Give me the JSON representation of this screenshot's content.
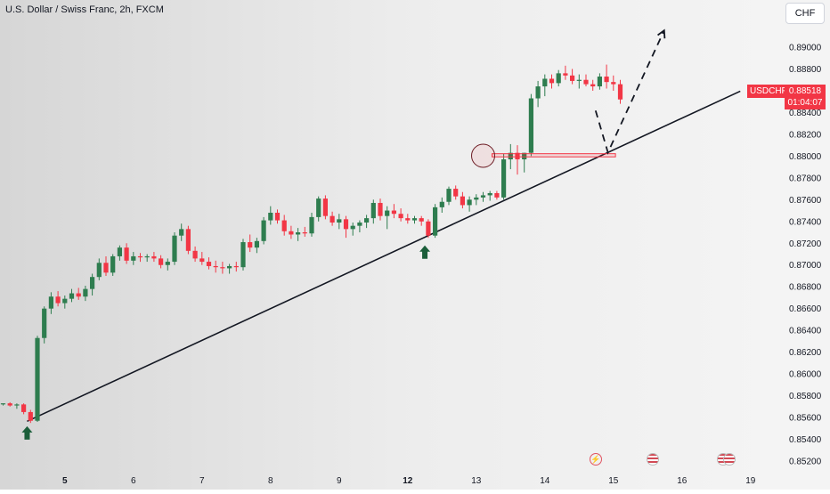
{
  "header": {
    "title": "U.S. Dollar / Swiss Franc, 2h, FXCM"
  },
  "currency_button": "CHF",
  "last_price": {
    "symbol": "USDCHF",
    "price": "0.88518",
    "countdown": "01:04:07"
  },
  "colors": {
    "up": "#2e7d4f",
    "down": "#f23645",
    "trendline": "#131722",
    "accent": "#f23645"
  },
  "event_icons": [
    "lightning-icon",
    "us-flag-icon",
    "us-flag-icon"
  ],
  "chart_data": {
    "type": "candlestick",
    "ylim": [
      0.8512,
      0.8915
    ],
    "yticks": [
      "0.89000",
      "0.88800",
      "0.88600",
      "0.88400",
      "0.88200",
      "0.88000",
      "0.87800",
      "0.87600",
      "0.87400",
      "0.87200",
      "0.87000",
      "0.86800",
      "0.86600",
      "0.86400",
      "0.86200",
      "0.86000",
      "0.85800",
      "0.85600",
      "0.85400",
      "0.85200"
    ],
    "xticks": [
      {
        "label": "5",
        "bold": true,
        "i": 9
      },
      {
        "label": "6",
        "bold": false,
        "i": 19
      },
      {
        "label": "7",
        "bold": false,
        "i": 29
      },
      {
        "label": "8",
        "bold": false,
        "i": 39
      },
      {
        "label": "9",
        "bold": false,
        "i": 49
      },
      {
        "label": "12",
        "bold": true,
        "i": 59
      },
      {
        "label": "13",
        "bold": false,
        "i": 69
      },
      {
        "label": "14",
        "bold": false,
        "i": 79
      },
      {
        "label": "15",
        "bold": false,
        "i": 89
      },
      {
        "label": "16",
        "bold": false,
        "i": 99
      },
      {
        "label": "19",
        "bold": false,
        "i": 109
      }
    ],
    "candles": [
      [
        0.8572,
        0.8573,
        0.8571,
        0.8573
      ],
      [
        0.8573,
        0.8574,
        0.857,
        0.8571
      ],
      [
        0.8571,
        0.8573,
        0.8568,
        0.8572
      ],
      [
        0.8572,
        0.8573,
        0.8563,
        0.8565
      ],
      [
        0.8565,
        0.8567,
        0.8555,
        0.8557
      ],
      [
        0.8557,
        0.8635,
        0.8556,
        0.8633
      ],
      [
        0.8633,
        0.8662,
        0.8628,
        0.866
      ],
      [
        0.866,
        0.8675,
        0.8655,
        0.8671
      ],
      [
        0.8671,
        0.8676,
        0.8662,
        0.8665
      ],
      [
        0.8665,
        0.8672,
        0.866,
        0.8669
      ],
      [
        0.8669,
        0.8678,
        0.8666,
        0.8674
      ],
      [
        0.8674,
        0.8679,
        0.8668,
        0.8671
      ],
      [
        0.8671,
        0.8681,
        0.8667,
        0.8678
      ],
      [
        0.8678,
        0.8692,
        0.8672,
        0.8689
      ],
      [
        0.8689,
        0.8706,
        0.8686,
        0.8702
      ],
      [
        0.8702,
        0.8708,
        0.869,
        0.8693
      ],
      [
        0.8693,
        0.871,
        0.869,
        0.8708
      ],
      [
        0.8708,
        0.8718,
        0.8704,
        0.8716
      ],
      [
        0.8716,
        0.872,
        0.8701,
        0.8704
      ],
      [
        0.8704,
        0.8712,
        0.87,
        0.8708
      ],
      [
        0.8708,
        0.8711,
        0.8703,
        0.8707
      ],
      [
        0.8707,
        0.871,
        0.8703,
        0.8708
      ],
      [
        0.8708,
        0.8712,
        0.8703,
        0.8706
      ],
      [
        0.8706,
        0.8709,
        0.8697,
        0.87
      ],
      [
        0.87,
        0.8706,
        0.8695,
        0.8703
      ],
      [
        0.8703,
        0.873,
        0.87,
        0.8727
      ],
      [
        0.8727,
        0.8738,
        0.8722,
        0.8733
      ],
      [
        0.8733,
        0.8736,
        0.871,
        0.8713
      ],
      [
        0.8713,
        0.8717,
        0.8703,
        0.8706
      ],
      [
        0.8706,
        0.8712,
        0.87,
        0.8703
      ],
      [
        0.8703,
        0.8707,
        0.8696,
        0.8699
      ],
      [
        0.8699,
        0.8704,
        0.8693,
        0.8698
      ],
      [
        0.8698,
        0.8703,
        0.8692,
        0.8697
      ],
      [
        0.8697,
        0.8701,
        0.8692,
        0.8699
      ],
      [
        0.8699,
        0.8703,
        0.8694,
        0.8698
      ],
      [
        0.8698,
        0.8724,
        0.8695,
        0.8721
      ],
      [
        0.8721,
        0.8728,
        0.8712,
        0.8716
      ],
      [
        0.8716,
        0.8725,
        0.8711,
        0.8722
      ],
      [
        0.8722,
        0.8744,
        0.8719,
        0.8741
      ],
      [
        0.8741,
        0.8754,
        0.8737,
        0.8748
      ],
      [
        0.8748,
        0.8751,
        0.8738,
        0.8741
      ],
      [
        0.8741,
        0.8746,
        0.8727,
        0.8731
      ],
      [
        0.8731,
        0.8736,
        0.8724,
        0.8728
      ],
      [
        0.8728,
        0.8734,
        0.8722,
        0.873
      ],
      [
        0.873,
        0.8735,
        0.8726,
        0.8729
      ],
      [
        0.8729,
        0.8748,
        0.8726,
        0.8744
      ],
      [
        0.8744,
        0.8763,
        0.874,
        0.8761
      ],
      [
        0.8761,
        0.8764,
        0.8742,
        0.8745
      ],
      [
        0.8745,
        0.8749,
        0.8736,
        0.8739
      ],
      [
        0.8739,
        0.8747,
        0.8733,
        0.8742
      ],
      [
        0.8742,
        0.8745,
        0.8725,
        0.8733
      ],
      [
        0.8733,
        0.8739,
        0.8727,
        0.8736
      ],
      [
        0.8736,
        0.8741,
        0.873,
        0.8739
      ],
      [
        0.8739,
        0.8746,
        0.8734,
        0.8743
      ],
      [
        0.8743,
        0.876,
        0.8738,
        0.8757
      ],
      [
        0.8757,
        0.8761,
        0.8741,
        0.8745
      ],
      [
        0.8745,
        0.8754,
        0.8733,
        0.875
      ],
      [
        0.875,
        0.8756,
        0.8743,
        0.8747
      ],
      [
        0.8747,
        0.8752,
        0.874,
        0.8743
      ],
      [
        0.8743,
        0.8747,
        0.8738,
        0.8741
      ],
      [
        0.8741,
        0.8745,
        0.8738,
        0.8743
      ],
      [
        0.8743,
        0.8745,
        0.8736,
        0.874
      ],
      [
        0.874,
        0.8742,
        0.8725,
        0.8727
      ],
      [
        0.8727,
        0.8756,
        0.8725,
        0.8753
      ],
      [
        0.8753,
        0.8762,
        0.8748,
        0.8758
      ],
      [
        0.8758,
        0.8772,
        0.8755,
        0.877
      ],
      [
        0.877,
        0.8773,
        0.876,
        0.8763
      ],
      [
        0.8763,
        0.8767,
        0.8752,
        0.8755
      ],
      [
        0.8755,
        0.8763,
        0.8749,
        0.876
      ],
      [
        0.876,
        0.8765,
        0.8755,
        0.8762
      ],
      [
        0.8762,
        0.8767,
        0.8758,
        0.8764
      ],
      [
        0.8764,
        0.8768,
        0.8759,
        0.8766
      ],
      [
        0.8766,
        0.8768,
        0.876,
        0.8762
      ],
      [
        0.8762,
        0.8802,
        0.876,
        0.8797
      ],
      [
        0.8797,
        0.8811,
        0.8788,
        0.8803
      ],
      [
        0.8803,
        0.881,
        0.8783,
        0.8797
      ],
      [
        0.8797,
        0.8803,
        0.8785,
        0.8803
      ],
      [
        0.8803,
        0.8857,
        0.88,
        0.8853
      ],
      [
        0.8853,
        0.8869,
        0.8845,
        0.8864
      ],
      [
        0.8864,
        0.8875,
        0.8855,
        0.8871
      ],
      [
        0.8871,
        0.8875,
        0.8862,
        0.8867
      ],
      [
        0.8867,
        0.8879,
        0.8864,
        0.8876
      ],
      [
        0.8876,
        0.8883,
        0.887,
        0.8874
      ],
      [
        0.8874,
        0.888,
        0.8866,
        0.8869
      ],
      [
        0.8869,
        0.8875,
        0.8862,
        0.887
      ],
      [
        0.887,
        0.8875,
        0.8864,
        0.8866
      ],
      [
        0.8866,
        0.887,
        0.886,
        0.8864
      ],
      [
        0.8864,
        0.8876,
        0.8861,
        0.8873
      ],
      [
        0.8873,
        0.8884,
        0.8862,
        0.8868
      ],
      [
        0.8868,
        0.8874,
        0.886,
        0.8866
      ],
      [
        0.8866,
        0.887,
        0.8848,
        0.8852
      ]
    ],
    "trendline": [
      [
        3.5,
        0.85565
      ],
      [
        107.5,
        0.88596
      ]
    ],
    "zone": {
      "start": 71.3,
      "end": 89.3,
      "top": 0.88022,
      "bottom": 0.87993
    },
    "circle": {
      "i": 71.3,
      "y": 0.88003
    },
    "arrows": [
      {
        "i": 3.5,
        "y": 0.8552
      },
      {
        "i": 61.5,
        "y": 0.8718
      }
    ],
    "projection": [
      [
        86.4,
        0.88418
      ],
      [
        88.2,
        0.88033
      ],
      [
        96.4,
        0.89154
      ]
    ]
  }
}
